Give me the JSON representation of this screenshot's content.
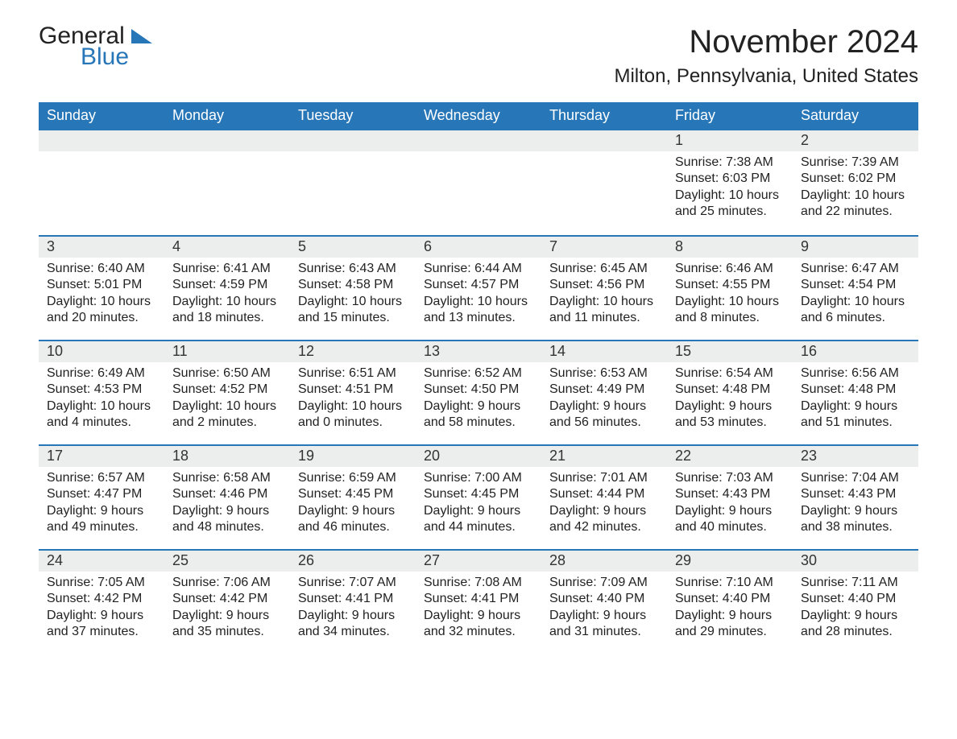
{
  "logo": {
    "general": "General",
    "blue": "Blue",
    "accent_color": "#2776b8"
  },
  "header": {
    "title": "November 2024",
    "location": "Milton, Pennsylvania, United States"
  },
  "colors": {
    "header_bg": "#2776b8",
    "header_text": "#ffffff",
    "daynum_bg": "#eceded",
    "border": "#2776b8",
    "page_bg": "#ffffff",
    "text": "#222222"
  },
  "weekdays": [
    "Sunday",
    "Monday",
    "Tuesday",
    "Wednesday",
    "Thursday",
    "Friday",
    "Saturday"
  ],
  "days": [
    {
      "n": 1,
      "sunrise": "7:38 AM",
      "sunset": "6:03 PM",
      "daylight": "10 hours and 25 minutes."
    },
    {
      "n": 2,
      "sunrise": "7:39 AM",
      "sunset": "6:02 PM",
      "daylight": "10 hours and 22 minutes."
    },
    {
      "n": 3,
      "sunrise": "6:40 AM",
      "sunset": "5:01 PM",
      "daylight": "10 hours and 20 minutes."
    },
    {
      "n": 4,
      "sunrise": "6:41 AM",
      "sunset": "4:59 PM",
      "daylight": "10 hours and 18 minutes."
    },
    {
      "n": 5,
      "sunrise": "6:43 AM",
      "sunset": "4:58 PM",
      "daylight": "10 hours and 15 minutes."
    },
    {
      "n": 6,
      "sunrise": "6:44 AM",
      "sunset": "4:57 PM",
      "daylight": "10 hours and 13 minutes."
    },
    {
      "n": 7,
      "sunrise": "6:45 AM",
      "sunset": "4:56 PM",
      "daylight": "10 hours and 11 minutes."
    },
    {
      "n": 8,
      "sunrise": "6:46 AM",
      "sunset": "4:55 PM",
      "daylight": "10 hours and 8 minutes."
    },
    {
      "n": 9,
      "sunrise": "6:47 AM",
      "sunset": "4:54 PM",
      "daylight": "10 hours and 6 minutes."
    },
    {
      "n": 10,
      "sunrise": "6:49 AM",
      "sunset": "4:53 PM",
      "daylight": "10 hours and 4 minutes."
    },
    {
      "n": 11,
      "sunrise": "6:50 AM",
      "sunset": "4:52 PM",
      "daylight": "10 hours and 2 minutes."
    },
    {
      "n": 12,
      "sunrise": "6:51 AM",
      "sunset": "4:51 PM",
      "daylight": "10 hours and 0 minutes."
    },
    {
      "n": 13,
      "sunrise": "6:52 AM",
      "sunset": "4:50 PM",
      "daylight": "9 hours and 58 minutes."
    },
    {
      "n": 14,
      "sunrise": "6:53 AM",
      "sunset": "4:49 PM",
      "daylight": "9 hours and 56 minutes."
    },
    {
      "n": 15,
      "sunrise": "6:54 AM",
      "sunset": "4:48 PM",
      "daylight": "9 hours and 53 minutes."
    },
    {
      "n": 16,
      "sunrise": "6:56 AM",
      "sunset": "4:48 PM",
      "daylight": "9 hours and 51 minutes."
    },
    {
      "n": 17,
      "sunrise": "6:57 AM",
      "sunset": "4:47 PM",
      "daylight": "9 hours and 49 minutes."
    },
    {
      "n": 18,
      "sunrise": "6:58 AM",
      "sunset": "4:46 PM",
      "daylight": "9 hours and 48 minutes."
    },
    {
      "n": 19,
      "sunrise": "6:59 AM",
      "sunset": "4:45 PM",
      "daylight": "9 hours and 46 minutes."
    },
    {
      "n": 20,
      "sunrise": "7:00 AM",
      "sunset": "4:45 PM",
      "daylight": "9 hours and 44 minutes."
    },
    {
      "n": 21,
      "sunrise": "7:01 AM",
      "sunset": "4:44 PM",
      "daylight": "9 hours and 42 minutes."
    },
    {
      "n": 22,
      "sunrise": "7:03 AM",
      "sunset": "4:43 PM",
      "daylight": "9 hours and 40 minutes."
    },
    {
      "n": 23,
      "sunrise": "7:04 AM",
      "sunset": "4:43 PM",
      "daylight": "9 hours and 38 minutes."
    },
    {
      "n": 24,
      "sunrise": "7:05 AM",
      "sunset": "4:42 PM",
      "daylight": "9 hours and 37 minutes."
    },
    {
      "n": 25,
      "sunrise": "7:06 AM",
      "sunset": "4:42 PM",
      "daylight": "9 hours and 35 minutes."
    },
    {
      "n": 26,
      "sunrise": "7:07 AM",
      "sunset": "4:41 PM",
      "daylight": "9 hours and 34 minutes."
    },
    {
      "n": 27,
      "sunrise": "7:08 AM",
      "sunset": "4:41 PM",
      "daylight": "9 hours and 32 minutes."
    },
    {
      "n": 28,
      "sunrise": "7:09 AM",
      "sunset": "4:40 PM",
      "daylight": "9 hours and 31 minutes."
    },
    {
      "n": 29,
      "sunrise": "7:10 AM",
      "sunset": "4:40 PM",
      "daylight": "9 hours and 29 minutes."
    },
    {
      "n": 30,
      "sunrise": "7:11 AM",
      "sunset": "4:40 PM",
      "daylight": "9 hours and 28 minutes."
    }
  ],
  "labels": {
    "sunrise": "Sunrise: ",
    "sunset": "Sunset: ",
    "daylight": "Daylight: "
  },
  "layout": {
    "first_weekday_index": 5,
    "rows": 5,
    "cols": 7
  }
}
